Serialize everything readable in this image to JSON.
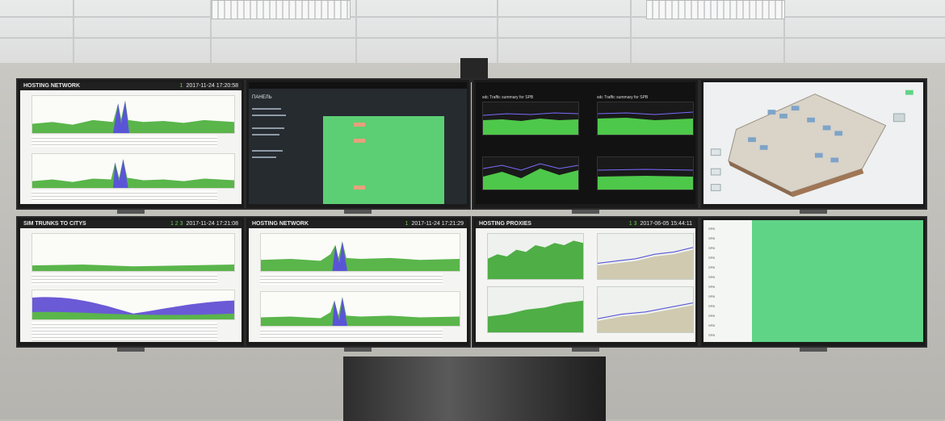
{
  "scene": "Network operations center video wall with eight monitors",
  "monitors": {
    "m1": {
      "brand": "HOSTING NETWORK",
      "badge": "1",
      "timestamp": "2017-11-24 17:20:58",
      "colors": {
        "fill": "#5ab54b",
        "spike": "#5a55d6"
      }
    },
    "m2": {
      "sidebar_title": "ПАНЕЛЬ",
      "panel_colors": {
        "green": "#5ccf74",
        "orange": "#e8a07b"
      }
    },
    "m3": {
      "title_left": "sdc Traffic summary for SPB",
      "title_right": "sdc Traffic summary for SPB"
    },
    "m4": {},
    "m5": {
      "brand": "SIM TRUNKS TO CITYS",
      "badge": "1 2 3",
      "timestamp": "2017-11-24 17:21:08",
      "colors": {
        "area": "#6a5ad6",
        "low": "#5ab54b"
      }
    },
    "m6": {
      "brand": "HOSTING NETWORK",
      "badge": "1",
      "timestamp": "2017-11-24 17:21:29"
    },
    "m7": {
      "brand": "HOSTING PROXIES",
      "badge": "1 3",
      "timestamp": "2017-06-05 15:44:11"
    },
    "m8": {
      "rows": [
        "SPB",
        "SPB",
        "SPB",
        "SPB",
        "SPB",
        "SPB",
        "SPB",
        "SPB",
        "SPB",
        "SPB",
        "SPB",
        "SPB"
      ],
      "colors": {
        "table": "#5fd487"
      }
    }
  }
}
